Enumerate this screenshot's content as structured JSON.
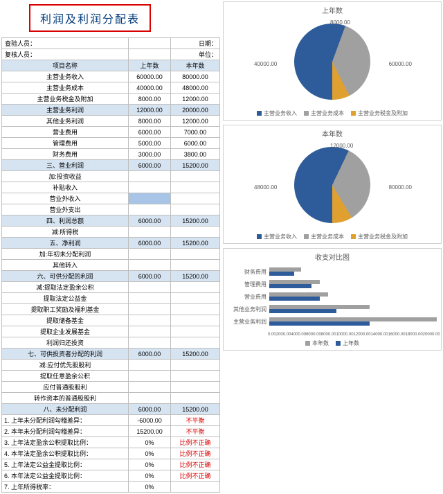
{
  "title": "利润及利润分配表",
  "meta": {
    "auditor_label": "查验人员：",
    "auditor_value": "",
    "reviewer_label": "复核人员：",
    "reviewer_value": "",
    "date_label": "日期：",
    "date_value": "",
    "unit_label": "单位：",
    "unit_value": ""
  },
  "headers": {
    "item": "项目名称",
    "prev": "上年数",
    "curr": "本年数"
  },
  "rows": [
    {
      "k": "r0",
      "label": "主营业务收入",
      "prev": "60000.00",
      "curr": "80000.00",
      "cls": ""
    },
    {
      "k": "r1",
      "label": "主营业务成本",
      "prev": "40000.00",
      "curr": "48000.00",
      "cls": ""
    },
    {
      "k": "r2",
      "label": "主营业务税金及附加",
      "prev": "8000.00",
      "curr": "12000.00",
      "cls": ""
    },
    {
      "k": "r3",
      "label": "主营业务利润",
      "prev": "12000.00",
      "curr": "20000.00",
      "cls": "blue-row"
    },
    {
      "k": "r4",
      "label": "其他业务利润",
      "prev": "8000.00",
      "curr": "12000.00",
      "cls": ""
    },
    {
      "k": "r5",
      "label": "营业费用",
      "prev": "6000.00",
      "curr": "7000.00",
      "cls": ""
    },
    {
      "k": "r6",
      "label": "管理费用",
      "prev": "5000.00",
      "curr": "6000.00",
      "cls": ""
    },
    {
      "k": "r7",
      "label": "财务费用",
      "prev": "3000.00",
      "curr": "3800.00",
      "cls": ""
    },
    {
      "k": "r8",
      "label": "三、营业利润",
      "prev": "6000.00",
      "curr": "15200.00",
      "cls": "blue-row"
    },
    {
      "k": "r9",
      "label": "加:投资收益",
      "prev": "",
      "curr": "",
      "cls": ""
    },
    {
      "k": "r10",
      "label": "补贴收入",
      "prev": "",
      "curr": "",
      "cls": ""
    },
    {
      "k": "r11",
      "label": "营业外收入",
      "prev": "",
      "curr": "",
      "cls": "",
      "selected": true
    },
    {
      "k": "r12",
      "label": "营业外支出",
      "prev": "",
      "curr": "",
      "cls": ""
    },
    {
      "k": "r13",
      "label": "四、利润总额",
      "prev": "6000.00",
      "curr": "15200.00",
      "cls": "blue-row"
    },
    {
      "k": "r14",
      "label": "减:所得税",
      "prev": "",
      "curr": "",
      "cls": ""
    },
    {
      "k": "r15",
      "label": "五、净利润",
      "prev": "6000.00",
      "curr": "15200.00",
      "cls": "blue-row"
    },
    {
      "k": "r16",
      "label": "加:年初未分配利润",
      "prev": "",
      "curr": "",
      "cls": ""
    },
    {
      "k": "r17",
      "label": "其他转入",
      "prev": "",
      "curr": "",
      "cls": ""
    },
    {
      "k": "r18",
      "label": "六、可供分配的利润",
      "prev": "6000.00",
      "curr": "15200.00",
      "cls": "blue-row"
    },
    {
      "k": "r19",
      "label": "减:提取法定盈余公积",
      "prev": "",
      "curr": "",
      "cls": ""
    },
    {
      "k": "r20",
      "label": "提取法定公益金",
      "prev": "",
      "curr": "",
      "cls": ""
    },
    {
      "k": "r21",
      "label": "提取职工奖励及福利基金",
      "prev": "",
      "curr": "",
      "cls": ""
    },
    {
      "k": "r22",
      "label": "提取储备基金",
      "prev": "",
      "curr": "",
      "cls": ""
    },
    {
      "k": "r23",
      "label": "提取企业发展基金",
      "prev": "",
      "curr": "",
      "cls": ""
    },
    {
      "k": "r24",
      "label": "利润归还投资",
      "prev": "",
      "curr": "",
      "cls": ""
    },
    {
      "k": "r25",
      "label": "七、可供投资者分配的利润",
      "prev": "6000.00",
      "curr": "15200.00",
      "cls": "blue-row"
    },
    {
      "k": "r26",
      "label": "减:应付优先股股利",
      "prev": "",
      "curr": "",
      "cls": ""
    },
    {
      "k": "r27",
      "label": "提取任意盈余公积",
      "prev": "",
      "curr": "",
      "cls": ""
    },
    {
      "k": "r28",
      "label": "应付普通股股利",
      "prev": "",
      "curr": "",
      "cls": ""
    },
    {
      "k": "r29",
      "label": "转作资本的普通股股利",
      "prev": "",
      "curr": "",
      "cls": ""
    },
    {
      "k": "r30",
      "label": "八、未分配利润",
      "prev": "6000.00",
      "curr": "15200.00",
      "cls": "blue-row"
    }
  ],
  "checks": [
    {
      "n": "1.",
      "label": "上年未分配利润勾稽差异：",
      "val": "-6000.00",
      "note": "不平衡",
      "red": true
    },
    {
      "n": "2.",
      "label": "本年未分配利润勾稽差异：",
      "val": "15200.00",
      "note": "不平衡",
      "red": true
    },
    {
      "n": "3.",
      "label": "上年法定盈余公积提取比例：",
      "val": "0%",
      "note": "比例不正确",
      "red": true
    },
    {
      "n": "4.",
      "label": "本年法定盈余公积提取比例：",
      "val": "0%",
      "note": "比例不正确",
      "red": true
    },
    {
      "n": "5.",
      "label": "上年法定公益金提取比例：",
      "val": "0%",
      "note": "比例不正确",
      "red": true
    },
    {
      "n": "6.",
      "label": "本年法定公益金提取比例：",
      "val": "0%",
      "note": "比例不正确",
      "red": true
    },
    {
      "n": "7.",
      "label": "上年所得税率：",
      "val": "0%",
      "note": "",
      "red": false
    }
  ],
  "pie_prev": {
    "title": "上年数",
    "colors": [
      "#2e5c9a",
      "#a0a0a0",
      "#e0a030"
    ],
    "slices": [
      55.6,
      37.0,
      7.4
    ],
    "labels": [
      "60000.00",
      "40000.00",
      "8000.00"
    ],
    "legend": [
      "主营业务收入",
      "主营业务成本",
      "主营业务税金及附加"
    ]
  },
  "pie_curr": {
    "title": "本年数",
    "colors": [
      "#2e5c9a",
      "#a0a0a0",
      "#e0a030"
    ],
    "slices": [
      57.1,
      34.3,
      8.6
    ],
    "labels": [
      "80000.00",
      "48000.00",
      "12000.00"
    ],
    "legend": [
      "主营业务收入",
      "主营业务成本",
      "主营业务税金及附加"
    ]
  },
  "bar_chart": {
    "title": "收支对比图",
    "legend": [
      "本年数",
      "上年数"
    ],
    "colors": {
      "curr": "#a0a0a0",
      "prev": "#2e5c9a"
    },
    "max": 20000,
    "cats": [
      {
        "label": "财务费用",
        "prev": 3000,
        "curr": 3800
      },
      {
        "label": "管理费用",
        "prev": 5000,
        "curr": 6000
      },
      {
        "label": "营业费用",
        "prev": 6000,
        "curr": 7000
      },
      {
        "label": "其他业务利润",
        "prev": 8000,
        "curr": 12000
      },
      {
        "label": "主营业务利润",
        "prev": 12000,
        "curr": 20000
      }
    ],
    "ticks": [
      "0.00",
      "2000.00",
      "4000.00",
      "6000.00",
      "8000.00",
      "10000.00",
      "12000.00",
      "14000.00",
      "16000.00",
      "18000.00",
      "20000.00"
    ]
  }
}
